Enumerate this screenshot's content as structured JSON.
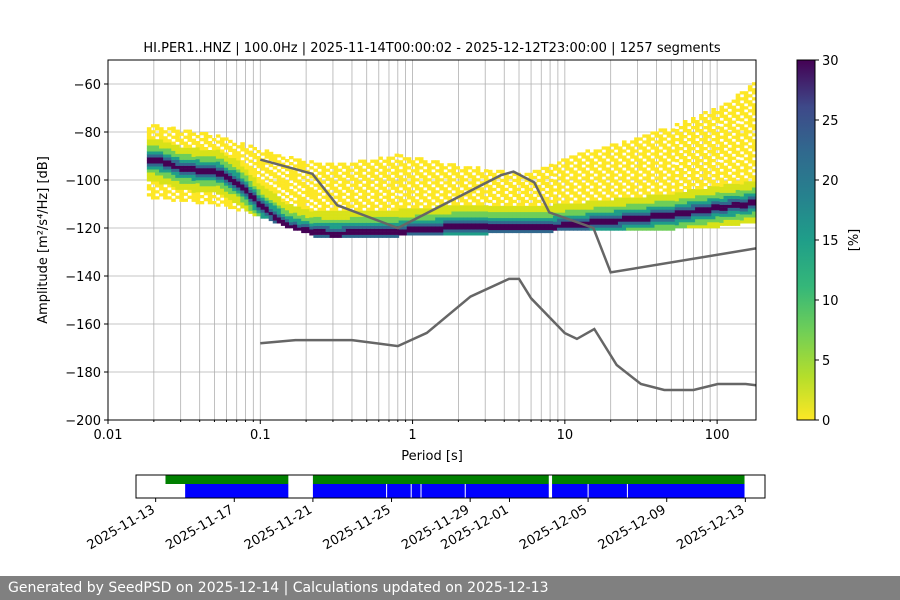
{
  "chart_data": [
    {
      "type": "heatmap",
      "title": "HI.PER1..HNZ | 100.0Hz | 2025-11-14T00:00:02 - 2025-12-12T23:00:00 | 1257 segments",
      "xlabel": "Period [s]",
      "ylabel": "Amplitude [m²/s⁴/Hz] [dB]",
      "x_scale": "log",
      "xlim": [
        0.01,
        180
      ],
      "ylim": [
        -200,
        -50
      ],
      "x_ticks": [
        {
          "value": 0.01,
          "label": "0.01"
        },
        {
          "value": 0.1,
          "label": "0.1"
        },
        {
          "value": 1,
          "label": "1"
        },
        {
          "value": 10,
          "label": "10"
        },
        {
          "value": 100,
          "label": "100"
        }
      ],
      "y_ticks": [
        -60,
        -80,
        -100,
        -120,
        -140,
        -160,
        -180,
        -200
      ],
      "grid": true,
      "colorbar": {
        "label": "[%]",
        "range": [
          0,
          30
        ],
        "ticks": [
          0,
          5,
          10,
          15,
          20,
          25,
          30
        ],
        "colormap": "viridis_r"
      },
      "mode_curve": {
        "x": [
          0.02,
          0.03,
          0.05,
          0.07,
          0.1,
          0.15,
          0.2,
          0.3,
          0.5,
          0.8,
          1.2,
          2,
          3,
          5,
          8,
          12,
          16,
          25,
          50,
          100,
          180
        ],
        "y": [
          -92,
          -96,
          -97,
          -102,
          -112,
          -120,
          -122,
          -123,
          -122,
          -122,
          -121,
          -120,
          -120,
          -120,
          -120,
          -119,
          -118,
          -117,
          -115,
          -112,
          -110
        ]
      },
      "model_curves": [
        {
          "x": [
            0.1,
            0.22,
            0.32,
            0.8,
            3.8,
            4.6,
            6.3,
            7.9,
            15.4,
            20,
            180
          ],
          "y": [
            -91.5,
            -97.4,
            -110.5,
            -120,
            -98,
            -96.5,
            -101,
            -113.5,
            -120,
            -138.5,
            -128.5
          ]
        },
        {
          "x": [
            0.1,
            0.17,
            0.4,
            0.8,
            1.24,
            2.4,
            4.3,
            5,
            6,
            10,
            12,
            15.6,
            21.9,
            31.6,
            45,
            70,
            101,
            154,
            180
          ],
          "y": [
            -168,
            -166.7,
            -166.7,
            -169.2,
            -163.7,
            -148.6,
            -141.2,
            -141.2,
            -149.3,
            -163.8,
            -166.2,
            -162.1,
            -177.1,
            -185,
            -187.5,
            -187.5,
            -185,
            -185,
            -185.5
          ]
        }
      ],
      "density_bands": [
        {
          "x": [
            0.018,
            0.05,
            0.08,
            0.13,
            0.22,
            0.4,
            0.8,
            1.5,
            3,
            5,
            8,
            14,
            25,
            50,
            100,
            180
          ],
          "low": [
            -108,
            -111,
            -114,
            -119,
            -124,
            -124,
            -124,
            -123,
            -123,
            -122,
            -122,
            -121,
            -121,
            -121,
            -120,
            -118
          ],
          "high": [
            -77,
            -82,
            -86,
            -90,
            -93,
            -93,
            -90,
            -93,
            -96,
            -98,
            -94,
            -88,
            -84,
            -78,
            -70,
            -58
          ]
        }
      ]
    },
    {
      "type": "availability",
      "x_ticks": [
        "2025-11-13",
        "2025-11-17",
        "2025-11-21",
        "2025-11-25",
        "2025-11-29",
        "2025-12-01",
        "2025-12-05",
        "2025-12-09",
        "2025-12-13"
      ],
      "xlim": [
        "2025-11-12",
        "2025-12-14"
      ],
      "green_segments": [
        [
          "2025-11-13 12:00",
          "2025-11-19 18:00"
        ],
        [
          "2025-11-21 00:00",
          "2025-12-03 00:00"
        ],
        [
          "2025-12-03 04:00",
          "2025-12-12 23:00"
        ]
      ],
      "blue_segments": [
        [
          "2025-11-14 12:00",
          "2025-11-19 18:00"
        ],
        [
          "2025-11-21 00:00",
          "2025-12-03 00:00"
        ],
        [
          "2025-12-03 04:00",
          "2025-12-12 23:00"
        ]
      ],
      "green_color": "#008000",
      "blue_color": "#0000ff"
    }
  ],
  "footer": {
    "text": "Generated by SeedPSD on 2025-12-14 | Calculations updated on 2025-12-13"
  }
}
